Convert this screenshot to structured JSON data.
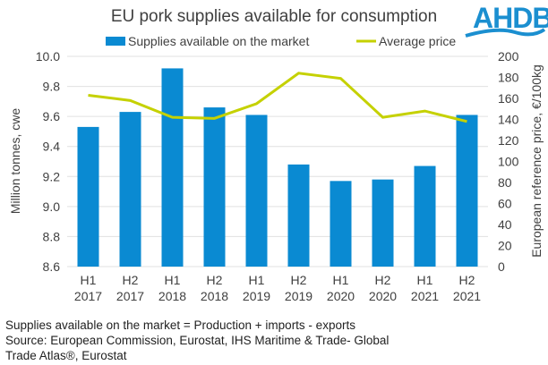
{
  "logo": "AHDB",
  "notes": [
    "Supplies available on the market = Production + imports - exports",
    "Source: European Commission, Eurostat, IHS Maritime & Trade- Global",
    "Trade Atlas®, Eurostat"
  ],
  "colors": {
    "bar": "#0a8ad2",
    "line": "#c5d100",
    "grid": "#e0e0e0"
  },
  "chart_data": {
    "type": "bar+line",
    "title": "EU pork supplies available for consumption",
    "categories": [
      [
        "H1",
        "2017"
      ],
      [
        "H2",
        "2017"
      ],
      [
        "H1",
        "2018"
      ],
      [
        "H2",
        "2018"
      ],
      [
        "H1",
        "2019"
      ],
      [
        "H2",
        "2019"
      ],
      [
        "H1",
        "2020"
      ],
      [
        "H2",
        "2020"
      ],
      [
        "H1",
        "2021"
      ],
      [
        "H2",
        "2021"
      ]
    ],
    "series": [
      {
        "name": "Supplies available on the market",
        "type": "bar",
        "axis": "left",
        "values": [
          9.53,
          9.63,
          9.92,
          9.66,
          9.61,
          9.28,
          9.17,
          9.18,
          9.27,
          9.61
        ]
      },
      {
        "name": "Average price",
        "type": "line",
        "axis": "right",
        "values": [
          163,
          158,
          142,
          141,
          155,
          184,
          179,
          142,
          148,
          138
        ]
      }
    ],
    "ylabel": "Million tonnes, cwe",
    "y2label": "European reference price, €/100kg",
    "ylim": [
      8.6,
      10.0
    ],
    "yticks": [
      "8.6",
      "8.8",
      "9.0",
      "9.2",
      "9.4",
      "9.6",
      "9.8",
      "10.0"
    ],
    "y2lim": [
      0,
      200
    ],
    "y2ticks": [
      "0",
      "20",
      "40",
      "60",
      "80",
      "100",
      "120",
      "140",
      "160",
      "180",
      "200"
    ],
    "legend": "top",
    "grid": true
  }
}
